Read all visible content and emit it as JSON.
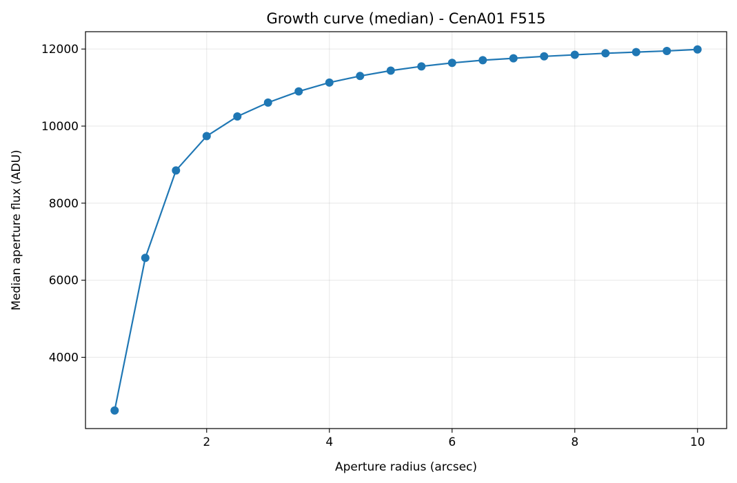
{
  "chart_data": {
    "type": "line",
    "title": "Growth curve (median) - CenA01 F515",
    "xlabel": "Aperture radius (arcsec)",
    "ylabel": "Median aperture flux (ADU)",
    "xlim": [
      0.025,
      10.475
    ],
    "ylim": [
      2150,
      12450
    ],
    "xticks": [
      2,
      4,
      6,
      8,
      10
    ],
    "yticks": [
      4000,
      6000,
      8000,
      10000,
      12000
    ],
    "grid": true,
    "series": [
      {
        "color": "#1f77b4",
        "marker": "circle",
        "x": [
          0.5,
          1.0,
          1.5,
          2.0,
          2.5,
          3.0,
          3.5,
          4.0,
          4.5,
          5.0,
          5.5,
          6.0,
          6.5,
          7.0,
          7.5,
          8.0,
          8.5,
          9.0,
          9.5,
          10.0
        ],
        "y": [
          2620,
          6580,
          8850,
          9740,
          10250,
          10610,
          10900,
          11130,
          11300,
          11440,
          11550,
          11640,
          11710,
          11760,
          11810,
          11850,
          11890,
          11920,
          11950,
          11990
        ]
      }
    ]
  }
}
